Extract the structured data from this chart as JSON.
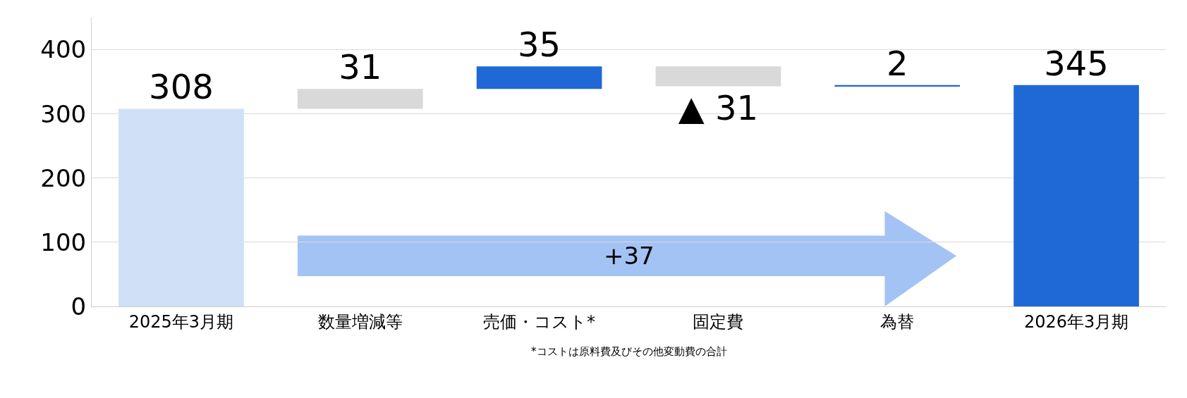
{
  "chart_data": {
    "type": "bar",
    "categories": [
      "2025年3月期",
      "数量増減等",
      "売価・コスト*",
      "固定費",
      "為替",
      "2026年3月期"
    ],
    "values": [
      308,
      31,
      35,
      -31,
      2,
      345
    ],
    "base": [
      0,
      308,
      339,
      374,
      343,
      0
    ],
    "colors": [
      "#cfe0f7",
      "#d9d9d9",
      "#1f69d6",
      "#d9d9d9",
      "#1f69d6",
      "#1f69d6"
    ],
    "value_labels": [
      "308",
      "31",
      "35",
      "▲ 31",
      "2",
      "345"
    ],
    "ylim": [
      0,
      450
    ],
    "yticks": [
      0,
      100,
      200,
      300,
      400
    ],
    "grid": "y",
    "annotations": [
      "+37",
      "*コストは原料費及びその他変動費の合計"
    ]
  }
}
